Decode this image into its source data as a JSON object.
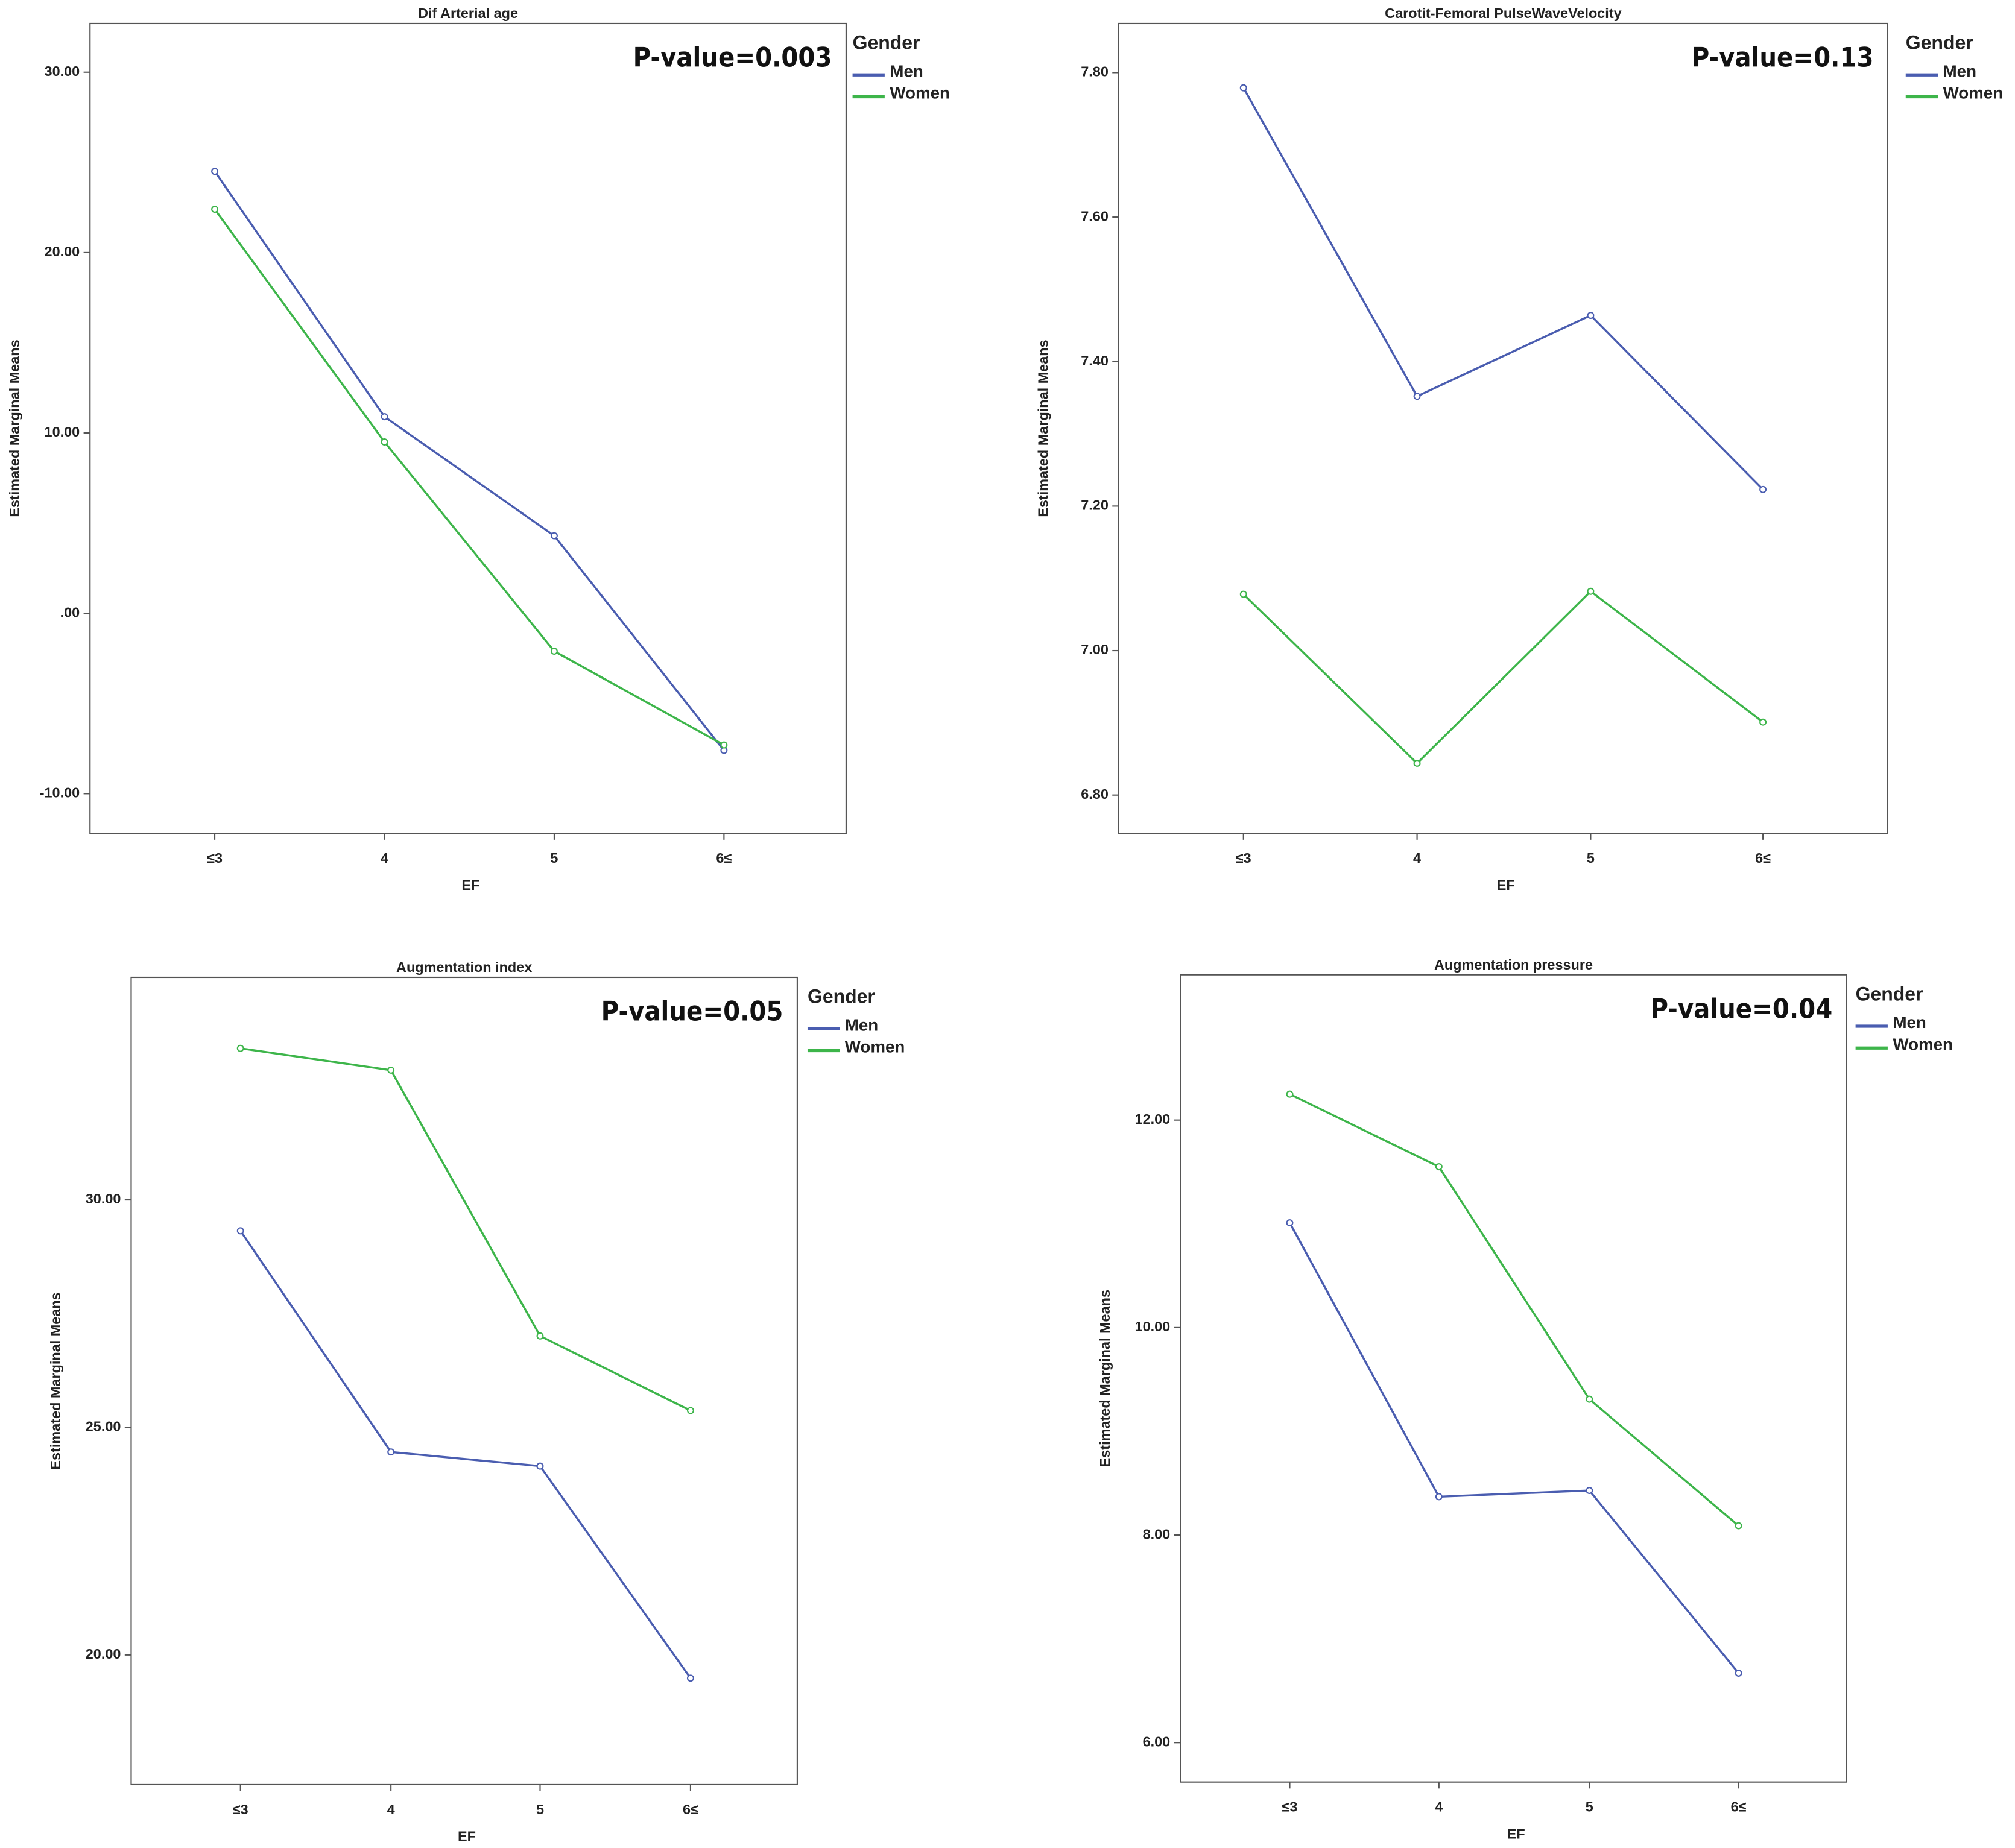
{
  "chart_data": [
    {
      "type": "line",
      "title": "Dif Arterial age",
      "annotation": "P-value=0.003",
      "xlabel": "EF",
      "ylabel": "Estimated Marginal Means",
      "legend_title": "Gender",
      "categories": [
        "≤3",
        "4",
        "5",
        "6≤"
      ],
      "series": [
        {
          "name": "Men",
          "color": "#4a5db0",
          "values": [
            24.5,
            10.9,
            4.3,
            -7.6
          ]
        },
        {
          "name": "Women",
          "color": "#3db54a",
          "values": [
            22.4,
            9.5,
            -2.1,
            -7.3
          ]
        }
      ],
      "ylim": [
        -12.2,
        32.7
      ],
      "yticks": [
        {
          "value": -10,
          "label": "-10.00"
        },
        {
          "value": 0,
          "label": ".00"
        },
        {
          "value": 10,
          "label": "10.00"
        },
        {
          "value": 20,
          "label": "20.00"
        },
        {
          "value": 30,
          "label": "30.00"
        }
      ]
    },
    {
      "type": "line",
      "title": "Carotit-Femoral PulseWaveVelocity",
      "annotation": "P-value=0.13",
      "xlabel": "EF",
      "ylabel": "Estimated Marginal Means",
      "legend_title": "Gender",
      "categories": [
        "≤3",
        "4",
        "5",
        "6≤"
      ],
      "series": [
        {
          "name": "Men",
          "color": "#4a5db0",
          "values": [
            7.779,
            7.352,
            7.464,
            7.223
          ]
        },
        {
          "name": "Women",
          "color": "#3db54a",
          "values": [
            7.078,
            6.844,
            7.082,
            6.901
          ]
        }
      ],
      "ylim": [
        6.747,
        7.868
      ],
      "yticks": [
        {
          "value": 6.8,
          "label": "6.80"
        },
        {
          "value": 7,
          "label": "7.00"
        },
        {
          "value": 7.2,
          "label": "7.20"
        },
        {
          "value": 7.4,
          "label": "7.40"
        },
        {
          "value": 7.6,
          "label": "7.60"
        },
        {
          "value": 7.8,
          "label": "7.80"
        }
      ]
    },
    {
      "type": "line",
      "title": "Augmentation index",
      "annotation": "P-value=0.05",
      "xlabel": "EF",
      "ylabel": "Estimated Marginal Means",
      "legend_title": "Gender",
      "categories": [
        "≤3",
        "4",
        "5",
        "6≤"
      ],
      "series": [
        {
          "name": "Men",
          "color": "#4a5db0",
          "values": [
            29.32,
            24.46,
            24.15,
            19.49
          ]
        },
        {
          "name": "Women",
          "color": "#3db54a",
          "values": [
            33.33,
            32.85,
            27.01,
            25.37
          ]
        }
      ],
      "ylim": [
        17.15,
        34.89
      ],
      "yticks": [
        {
          "value": 20,
          "label": "20.00"
        },
        {
          "value": 25,
          "label": "25.00"
        },
        {
          "value": 30,
          "label": "30.00"
        }
      ]
    },
    {
      "type": "line",
      "title": "Augmentation pressure",
      "annotation": "P-value=0.04",
      "xlabel": "EF",
      "ylabel": "Estimated Marginal Means",
      "legend_title": "Gender",
      "categories": [
        "≤3",
        "4",
        "5",
        "6≤"
      ],
      "series": [
        {
          "name": "Men",
          "color": "#4a5db0",
          "values": [
            11.01,
            8.37,
            8.43,
            6.67
          ]
        },
        {
          "name": "Women",
          "color": "#3db54a",
          "values": [
            12.25,
            11.55,
            9.31,
            8.09
          ]
        }
      ],
      "ylim": [
        5.62,
        13.4
      ],
      "yticks": [
        {
          "value": 6,
          "label": "6.00"
        },
        {
          "value": 8,
          "label": "8.00"
        },
        {
          "value": 10,
          "label": "10.00"
        },
        {
          "value": 12,
          "label": "12.00"
        }
      ]
    }
  ]
}
